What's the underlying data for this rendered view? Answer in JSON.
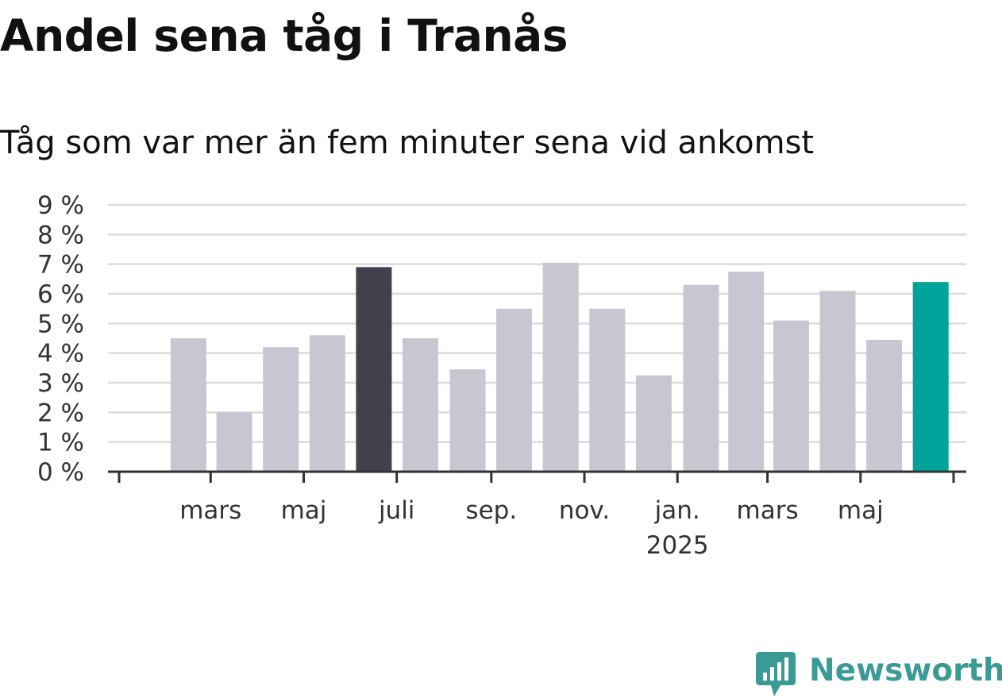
{
  "header": {
    "title": "Andel sena tåg i Tranås",
    "subtitle": "Tåg som var mer än fem minuter sena vid ankomst"
  },
  "branding": {
    "logo_text": "Newsworthy",
    "logo_color": "#3a9a95"
  },
  "colors": {
    "bar_default": "#c8c6d0",
    "bar_highlight": "#43404d",
    "bar_latest": "#00a39a",
    "grid": "#dcdcdc",
    "axis": "#333333"
  },
  "chart_data": {
    "type": "bar",
    "title": "Andel sena tåg i Tranås",
    "subtitle": "Tåg som var mer än fem minuter sena vid ankomst",
    "unit": "%",
    "ylim": [
      0,
      9
    ],
    "yticks": [
      0,
      1,
      2,
      3,
      4,
      5,
      6,
      7,
      8,
      9
    ],
    "ytick_labels": [
      "0 %",
      "1 %",
      "2 %",
      "3 %",
      "4 %",
      "5 %",
      "6 %",
      "7 %",
      "8 %",
      "9 %"
    ],
    "grid": true,
    "x_axis": {
      "start": "2024-01-01",
      "end": "2025-07-01",
      "ticks": [
        {
          "date": "2024-03-01",
          "label": "mars"
        },
        {
          "date": "2024-05-01",
          "label": "maj"
        },
        {
          "date": "2024-07-01",
          "label": "juli"
        },
        {
          "date": "2024-09-01",
          "label": "sep."
        },
        {
          "date": "2024-11-01",
          "label": "nov."
        },
        {
          "date": "2025-01-01",
          "label": "jan.",
          "sublabel": "2025"
        },
        {
          "date": "2025-03-01",
          "label": "mars"
        },
        {
          "date": "2025-05-01",
          "label": "maj"
        }
      ]
    },
    "bars": [
      {
        "date": "2024-02-01",
        "value": 4.5,
        "style": "default"
      },
      {
        "date": "2024-03-01",
        "value": 2.0,
        "style": "default"
      },
      {
        "date": "2024-04-01",
        "value": 4.2,
        "style": "default"
      },
      {
        "date": "2024-05-01",
        "value": 4.6,
        "style": "default"
      },
      {
        "date": "2024-06-01",
        "value": 6.9,
        "style": "highlight"
      },
      {
        "date": "2024-07-01",
        "value": 4.5,
        "style": "default"
      },
      {
        "date": "2024-08-01",
        "value": 3.45,
        "style": "default"
      },
      {
        "date": "2024-09-01",
        "value": 5.5,
        "style": "default"
      },
      {
        "date": "2024-10-01",
        "value": 7.05,
        "style": "default"
      },
      {
        "date": "2024-11-01",
        "value": 5.5,
        "style": "default"
      },
      {
        "date": "2024-12-01",
        "value": 3.25,
        "style": "default"
      },
      {
        "date": "2025-01-01",
        "value": 6.3,
        "style": "default"
      },
      {
        "date": "2025-02-01",
        "value": 6.75,
        "style": "default"
      },
      {
        "date": "2025-03-01",
        "value": 5.1,
        "style": "default"
      },
      {
        "date": "2025-04-01",
        "value": 6.1,
        "style": "default"
      },
      {
        "date": "2025-05-01",
        "value": 4.45,
        "style": "default"
      },
      {
        "date": "2025-06-01",
        "value": 6.4,
        "style": "latest"
      }
    ]
  }
}
